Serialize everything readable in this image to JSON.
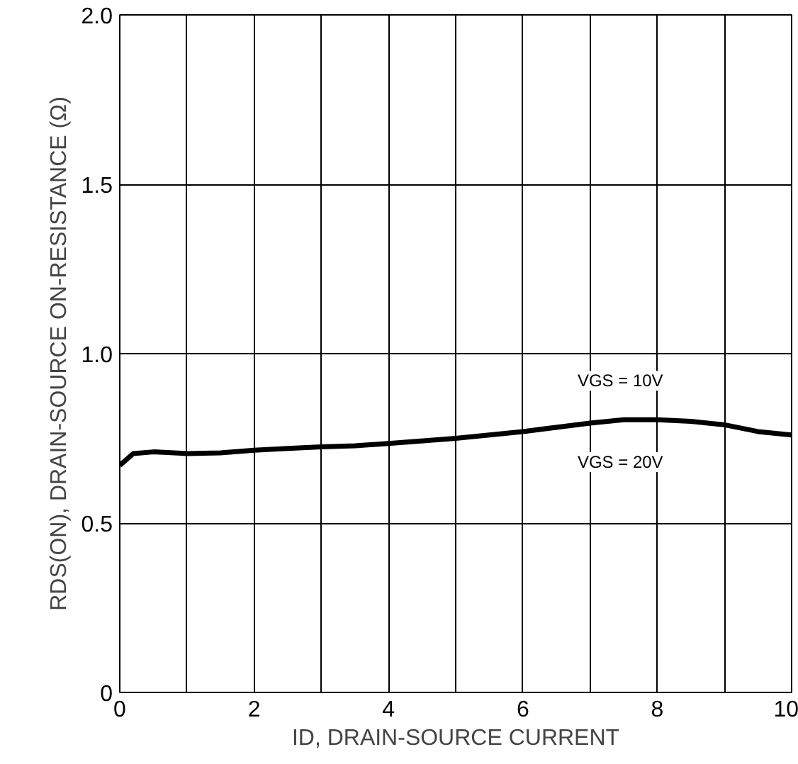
{
  "chart_data": {
    "type": "line",
    "xlabel": "ID, DRAIN-SOURCE CURRENT",
    "ylabel": "RDS(ON), DRAIN-SOURCE ON-RESISTANCE (Ω)",
    "x": [
      0,
      0.2,
      0.5,
      1,
      1.5,
      2,
      2.5,
      3,
      3.5,
      4,
      5,
      6,
      7,
      7.5,
      8,
      8.5,
      9,
      9.5,
      10
    ],
    "series": [
      {
        "color": "#000000",
        "values": [
          0.67,
          0.705,
          0.71,
          0.705,
          0.707,
          0.715,
          0.72,
          0.725,
          0.728,
          0.735,
          0.75,
          0.77,
          0.795,
          0.805,
          0.805,
          0.8,
          0.79,
          0.77,
          0.76
        ]
      }
    ],
    "xlim": [
      0,
      10
    ],
    "ylim": [
      0,
      2.0
    ],
    "xticks": [
      0,
      {
        "value": 1,
        "label": null
      },
      2,
      {
        "value": 3,
        "label": null
      },
      4,
      {
        "value": 5,
        "label": null
      },
      6,
      {
        "value": 7,
        "label": null
      },
      8,
      {
        "value": 9,
        "label": null
      },
      10
    ],
    "yticks": [
      0,
      0.5,
      "1.0",
      1.5,
      "2.0"
    ],
    "annotations": [
      "VGS = 10V",
      "VGS = 20V"
    ],
    "grid": true,
    "marker": "none",
    "line_style": "solid"
  }
}
